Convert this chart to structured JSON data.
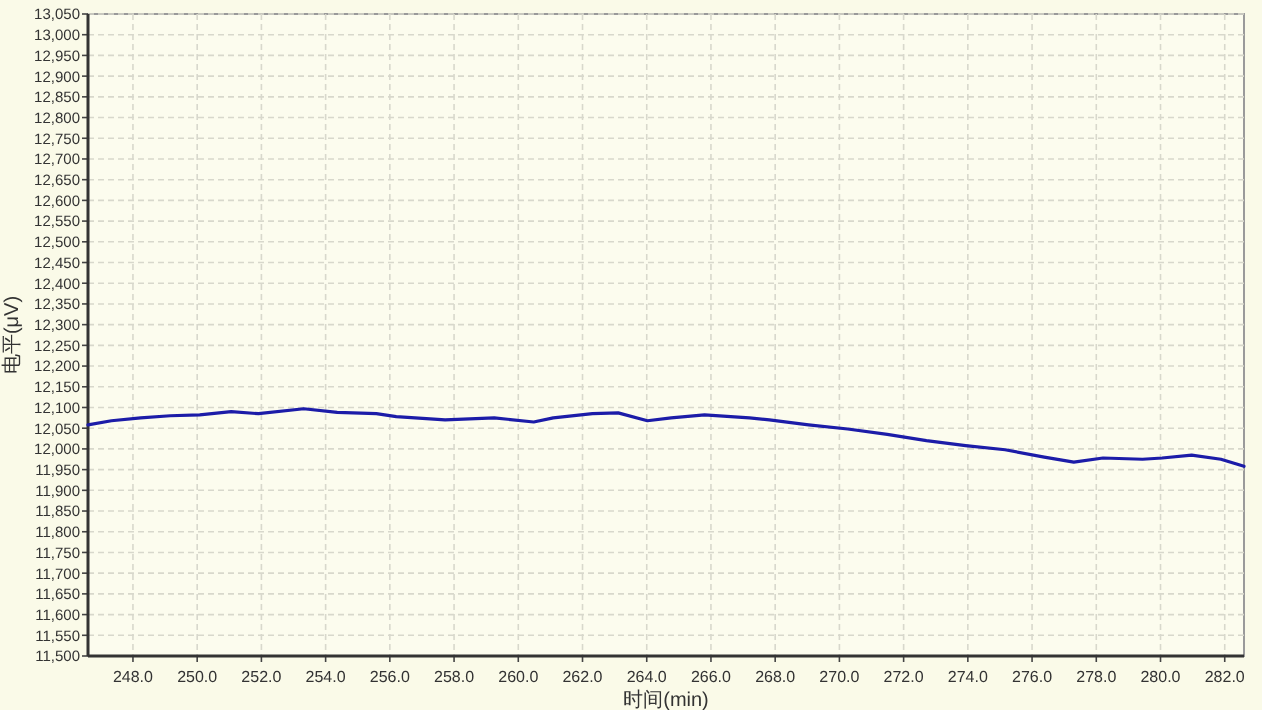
{
  "chart_data": {
    "type": "line",
    "xlabel": "时间(min)",
    "ylabel": "电平(μV)",
    "x": [
      246.6,
      247.33,
      248.24,
      249.16,
      250.08,
      251.06,
      251.91,
      253.32,
      254.36,
      255.58,
      256.2,
      257.72,
      259.25,
      260.48,
      261.09,
      262.31,
      263.11,
      264.02,
      264.76,
      265.8,
      267.2,
      267.82,
      269.04,
      270.26,
      271.49,
      272.71,
      273.93,
      275.16,
      276.38,
      277.3,
      278.21,
      279.44,
      280.05,
      280.97,
      281.88,
      282.6
    ],
    "series": [
      {
        "color": "#1c1ca8",
        "values": [
          12058,
          12068,
          12075,
          12080,
          12082,
          12090,
          12085,
          12097,
          12088,
          12085,
          12078,
          12070,
          12075,
          12065,
          12075,
          12085,
          12087,
          12068,
          12075,
          12082,
          12075,
          12070,
          12058,
          12048,
          12035,
          12020,
          12008,
          11998,
          11980,
          11968,
          11978,
          11975,
          11978,
          11985,
          11975,
          11958
        ]
      }
    ],
    "xlim": [
      246.6,
      282.6
    ],
    "ylim": [
      11500,
      13050
    ],
    "xticks": [
      {
        "value": 248,
        "label": "248.0"
      },
      {
        "value": 250,
        "label": "250.0"
      },
      {
        "value": 252,
        "label": "252.0"
      },
      {
        "value": 254,
        "label": "254.0"
      },
      {
        "value": 256,
        "label": "256.0"
      },
      {
        "value": 258,
        "label": "258.0"
      },
      {
        "value": 260,
        "label": "260.0"
      },
      {
        "value": 262,
        "label": "262.0"
      },
      {
        "value": 264,
        "label": "264.0"
      },
      {
        "value": 266,
        "label": "266.0"
      },
      {
        "value": 268,
        "label": "268.0"
      },
      {
        "value": 270,
        "label": "270.0"
      },
      {
        "value": 272,
        "label": "272.0"
      },
      {
        "value": 274,
        "label": "274.0"
      },
      {
        "value": 276,
        "label": "276.0"
      },
      {
        "value": 278,
        "label": "278.0"
      },
      {
        "value": 280,
        "label": "280.0"
      },
      {
        "value": 282,
        "label": "282.0"
      }
    ],
    "yticks": [
      {
        "value": 11500,
        "label": "11,500"
      },
      {
        "value": 11550,
        "label": "11,550"
      },
      {
        "value": 11600,
        "label": "11,600"
      },
      {
        "value": 11650,
        "label": "11,650"
      },
      {
        "value": 11700,
        "label": "11,700"
      },
      {
        "value": 11750,
        "label": "11,750"
      },
      {
        "value": 11800,
        "label": "11,800"
      },
      {
        "value": 11850,
        "label": "11,850"
      },
      {
        "value": 11900,
        "label": "11,900"
      },
      {
        "value": 11950,
        "label": "11,950"
      },
      {
        "value": 12000,
        "label": "12,000"
      },
      {
        "value": 12050,
        "label": "12,050"
      },
      {
        "value": 12100,
        "label": "12,100"
      },
      {
        "value": 12150,
        "label": "12,150"
      },
      {
        "value": 12200,
        "label": "12,200"
      },
      {
        "value": 12250,
        "label": "12,250"
      },
      {
        "value": 12300,
        "label": "12,300"
      },
      {
        "value": 12350,
        "label": "12,350"
      },
      {
        "value": 12400,
        "label": "12,400"
      },
      {
        "value": 12450,
        "label": "12,450"
      },
      {
        "value": 12500,
        "label": "12,500"
      },
      {
        "value": 12550,
        "label": "12,550"
      },
      {
        "value": 12600,
        "label": "12,600"
      },
      {
        "value": 12650,
        "label": "12,650"
      },
      {
        "value": 12700,
        "label": "12,700"
      },
      {
        "value": 12750,
        "label": "12,750"
      },
      {
        "value": 12800,
        "label": "12,800"
      },
      {
        "value": 12850,
        "label": "12,850"
      },
      {
        "value": 12900,
        "label": "12,900"
      },
      {
        "value": 12950,
        "label": "12,950"
      },
      {
        "value": 13000,
        "label": "13,000"
      },
      {
        "value": 13050,
        "label": "13,050"
      }
    ],
    "grid": true,
    "marker": "none",
    "line_style": "solid"
  }
}
